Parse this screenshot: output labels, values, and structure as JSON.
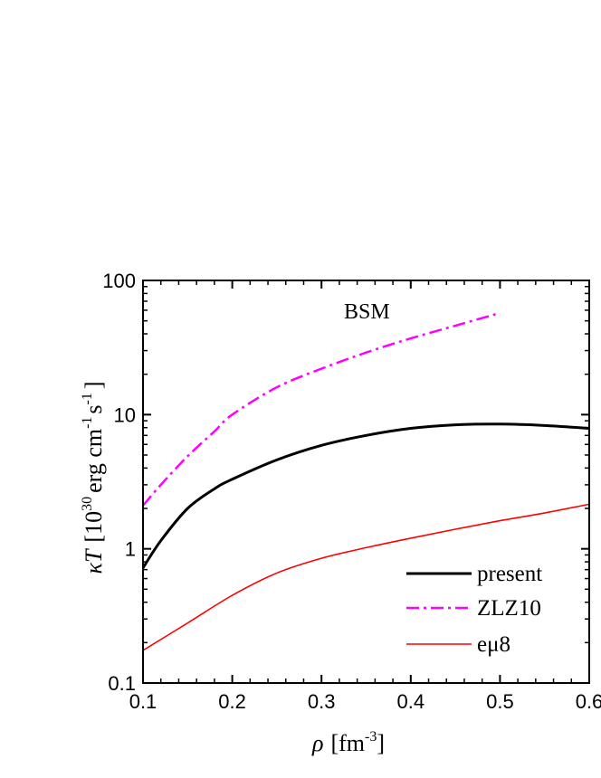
{
  "chart_data": {
    "type": "line",
    "title": "",
    "annotation": "BSM",
    "xlabel": {
      "symbol": "ρ",
      "unit": "[fm",
      "exp": "-3",
      "close": "]"
    },
    "ylabel": {
      "symbol": "κT",
      "pre": "[10",
      "exp30": "30",
      "mid1": "erg cm",
      "exp1": "-1",
      "mid2": "s",
      "exp2": "-1",
      "close": "]"
    },
    "xlim": [
      0.1,
      0.6
    ],
    "ylim": [
      0.1,
      100
    ],
    "yscale": "log",
    "grid": false,
    "legend_position": "bottom-right",
    "x_ticks": [
      {
        "value": 0.1,
        "label": "0.1"
      },
      {
        "value": 0.2,
        "label": "0.2"
      },
      {
        "value": 0.3,
        "label": "0.3"
      },
      {
        "value": 0.4,
        "label": "0.4"
      },
      {
        "value": 0.5,
        "label": "0.5"
      },
      {
        "value": 0.6,
        "label": "0.6"
      }
    ],
    "y_ticks": [
      {
        "value": 0.1,
        "label": "0.1"
      },
      {
        "value": 1,
        "label": "1"
      },
      {
        "value": 10,
        "label": "10"
      },
      {
        "value": 100,
        "label": "100"
      }
    ],
    "series": [
      {
        "name": "present",
        "color": "#000000",
        "style": "solid",
        "x": [
          0.1,
          0.12,
          0.15,
          0.18,
          0.2,
          0.25,
          0.3,
          0.35,
          0.4,
          0.45,
          0.5,
          0.55,
          0.6
        ],
        "y": [
          0.72,
          1.15,
          2.0,
          2.8,
          3.3,
          4.6,
          5.9,
          7.0,
          7.9,
          8.4,
          8.5,
          8.3,
          7.9
        ]
      },
      {
        "name": "ZLZ10",
        "color": "#ff00ff",
        "style": "dashdot",
        "x": [
          0.1,
          0.12,
          0.15,
          0.18,
          0.2,
          0.25,
          0.3,
          0.35,
          0.4,
          0.45,
          0.495
        ],
        "y": [
          2.1,
          3.0,
          4.9,
          7.5,
          10.0,
          16.0,
          22.0,
          29.0,
          37.0,
          46.0,
          56.0
        ]
      },
      {
        "name": "eμ8",
        "color": "#ff0000",
        "style": "solid",
        "x": [
          0.1,
          0.15,
          0.2,
          0.25,
          0.3,
          0.35,
          0.4,
          0.45,
          0.5,
          0.55,
          0.6
        ],
        "y": [
          0.175,
          0.28,
          0.45,
          0.66,
          0.85,
          1.02,
          1.2,
          1.4,
          1.62,
          1.85,
          2.15
        ]
      }
    ]
  }
}
